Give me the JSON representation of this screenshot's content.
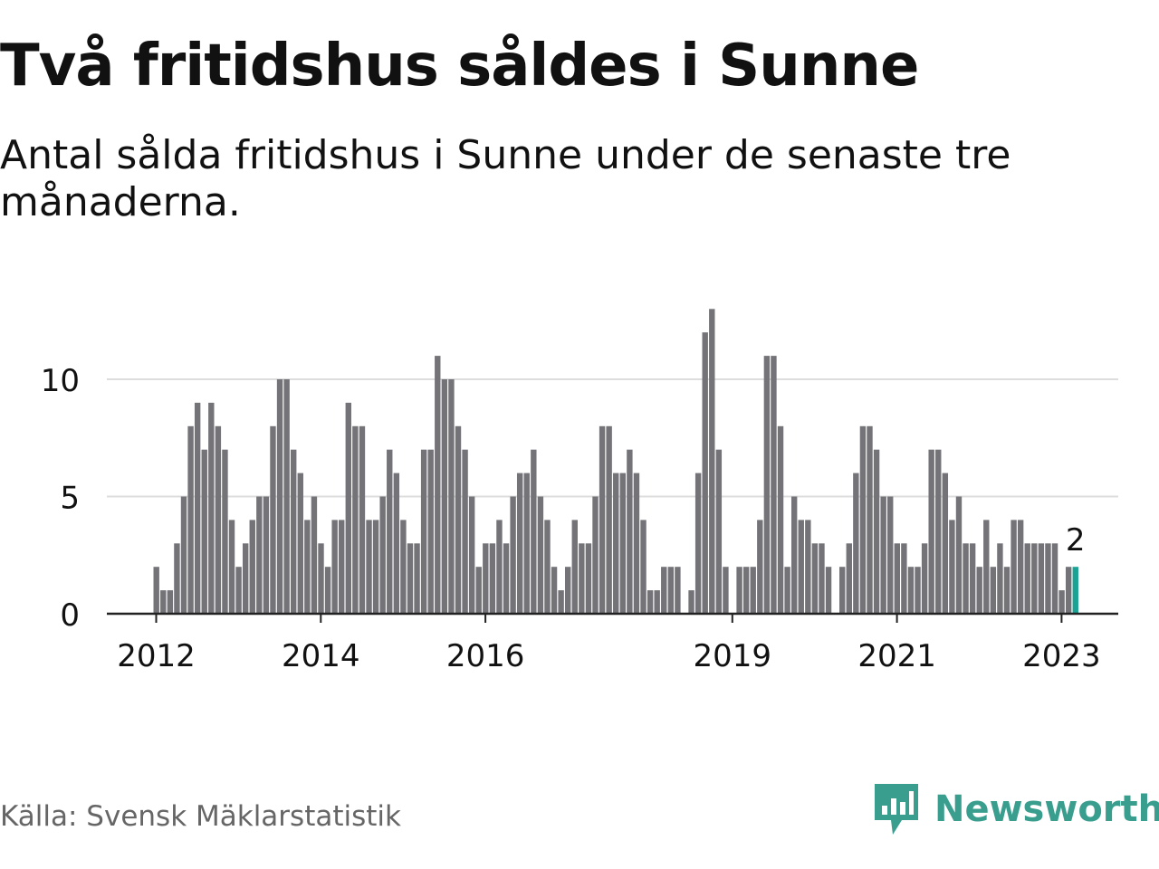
{
  "title": "Två fritidshus såldes i Sunne",
  "subtitle": "Antal sålda fritidshus i Sunne under de senaste tre månaderna.",
  "source": "Källa: Svensk Mäklarstatistik",
  "brand": {
    "name": "Newsworthy",
    "color": "#3a9e8e"
  },
  "colors": {
    "bar": "#747378",
    "highlight": "#1aa394",
    "grid": "#dddddd",
    "axis": "#222222",
    "text": "#111111"
  },
  "chart_data": {
    "type": "bar",
    "title": "Två fritidshus såldes i Sunne",
    "xlabel": "",
    "ylabel": "",
    "ylim": [
      0,
      14
    ],
    "yticks": [
      0,
      5,
      10
    ],
    "xticks": [
      "2012",
      "2014",
      "2016",
      "2019",
      "2021",
      "2023"
    ],
    "grid": true,
    "start": "2012-01",
    "values": [
      2,
      1,
      1,
      3,
      5,
      8,
      9,
      7,
      9,
      8,
      7,
      4,
      2,
      3,
      4,
      5,
      5,
      8,
      10,
      10,
      7,
      6,
      4,
      5,
      3,
      2,
      4,
      4,
      9,
      8,
      8,
      4,
      4,
      5,
      7,
      6,
      4,
      3,
      3,
      7,
      7,
      11,
      10,
      10,
      8,
      7,
      5,
      2,
      3,
      3,
      4,
      3,
      5,
      6,
      6,
      7,
      5,
      4,
      2,
      1,
      2,
      4,
      3,
      3,
      5,
      8,
      8,
      6,
      6,
      7,
      6,
      4,
      1,
      1,
      2,
      2,
      2,
      0,
      1,
      6,
      12,
      13,
      7,
      2,
      0,
      2,
      2,
      2,
      4,
      11,
      11,
      8,
      2,
      5,
      4,
      4,
      3,
      3,
      2,
      0,
      2,
      3,
      6,
      8,
      8,
      7,
      5,
      5,
      3,
      3,
      2,
      2,
      3,
      7,
      7,
      6,
      4,
      5,
      3,
      3,
      2,
      4,
      2,
      3,
      2,
      4,
      4,
      3,
      3,
      3,
      3,
      3,
      1,
      2,
      2
    ],
    "highlight_last": true,
    "annotation": "2"
  }
}
